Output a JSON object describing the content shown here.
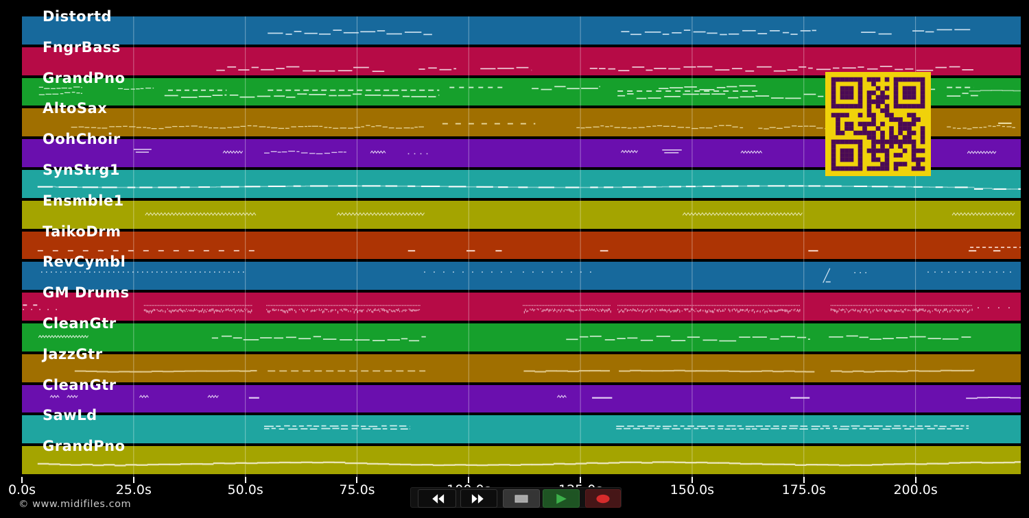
{
  "watermark": {
    "text": "© www.midifiles.com",
    "color": "#c9c9c9"
  },
  "axis": {
    "unit": "seconds",
    "duration_s": 223.6,
    "tick_color": "#ffffff",
    "gridline_color": "rgba(255,255,255,0.38)",
    "ticks": [
      {
        "t": 0,
        "label": "0.0s"
      },
      {
        "t": 25,
        "label": "25.0s"
      },
      {
        "t": 50,
        "label": "50.0s"
      },
      {
        "t": 75,
        "label": "75.0s"
      },
      {
        "t": 100,
        "label": "100.0s"
      },
      {
        "t": 125,
        "label": "125.0s"
      },
      {
        "t": 150,
        "label": "150.0s"
      },
      {
        "t": 175,
        "label": "175.0s"
      },
      {
        "t": 200,
        "label": "200.0s"
      }
    ]
  },
  "transport": {
    "bar_bg": "#111111",
    "buttons": [
      {
        "id": "rewind",
        "icon": "rewind-icon",
        "bg": "#0d0d0d",
        "fg": "#ffffff",
        "border": "#333333"
      },
      {
        "id": "fast-forward",
        "icon": "fast-forward-icon",
        "bg": "#0d0d0d",
        "fg": "#ffffff",
        "border": "#333333"
      },
      {
        "id": "stop",
        "icon": "stop-icon",
        "bg": "#353535",
        "fg": "#a8a8a8",
        "border": "#4a4a4a"
      },
      {
        "id": "play",
        "icon": "play-icon",
        "bg": "#1e5423",
        "fg": "#3cb04a",
        "border": "#2a6a30"
      },
      {
        "id": "record",
        "icon": "record-icon",
        "bg": "#461617",
        "fg": "#d62b2b",
        "border": "#5a1d1e"
      }
    ]
  },
  "qr_code": {
    "light": "#f0d20a",
    "dark": "#4a0a55"
  },
  "tracks": [
    {
      "name": "Distortd",
      "color": "#17699c",
      "note_color": "#d9e9f5",
      "segments": [
        {
          "t0": 55.0,
          "t1": 91.8,
          "y": 0.55,
          "style": "steps"
        },
        {
          "t0": 134.1,
          "t1": 177.8,
          "y": 0.55,
          "style": "steps"
        },
        {
          "t0": 187.8,
          "t1": 194.7,
          "y": 0.52,
          "style": "steps"
        },
        {
          "t0": 199.3,
          "t1": 212.4,
          "y": 0.52,
          "style": "steps"
        }
      ]
    },
    {
      "name": "FngrBass",
      "color": "#b60b46",
      "note_color": "#f5dfe6",
      "segments": [
        {
          "t0": 43.5,
          "t1": 81.1,
          "y": 0.76,
          "style": "steps"
        },
        {
          "t0": 88.8,
          "t1": 97.2,
          "y": 0.74,
          "style": "steps"
        },
        {
          "t0": 102.6,
          "t1": 114.1,
          "y": 0.74,
          "style": "steps"
        },
        {
          "t0": 127.1,
          "t1": 177.0,
          "y": 0.76,
          "style": "steps"
        },
        {
          "t0": 177.8,
          "t1": 213.1,
          "y": 0.74,
          "style": "steps"
        }
      ]
    },
    {
      "name": "GrandPno",
      "color": "#16a02c",
      "note_color": "#e2f5e2",
      "segments": [
        {
          "t0": 3.8,
          "t1": 13.5,
          "y": 0.34,
          "style": "wavy"
        },
        {
          "t0": 3.8,
          "t1": 13.5,
          "y": 0.55,
          "style": "wavy"
        },
        {
          "t0": 21.5,
          "t1": 29.5,
          "y": 0.36,
          "style": "wavy"
        },
        {
          "t0": 32.7,
          "t1": 45.8,
          "y": 0.42,
          "style": "dashes",
          "d": 7,
          "g": 5
        },
        {
          "t0": 31.9,
          "t1": 45.8,
          "y": 0.6,
          "style": "steps"
        },
        {
          "t0": 55.0,
          "t1": 93.4,
          "y": 0.42,
          "style": "dashes",
          "d": 8,
          "g": 5
        },
        {
          "t0": 46.5,
          "t1": 93.4,
          "y": 0.63,
          "style": "steps"
        },
        {
          "t0": 95.7,
          "t1": 108.0,
          "y": 0.32,
          "style": "dashes",
          "d": 7,
          "g": 7
        },
        {
          "t0": 114.1,
          "t1": 129.4,
          "y": 0.32,
          "style": "steps"
        },
        {
          "t0": 133.3,
          "t1": 164.8,
          "y": 0.45,
          "style": "dashes",
          "d": 8,
          "g": 6
        },
        {
          "t0": 133.3,
          "t1": 179.4,
          "y": 0.63,
          "style": "steps"
        },
        {
          "t0": 142.5,
          "t1": 164.8,
          "y": 0.32,
          "style": "steps"
        },
        {
          "t0": 184.7,
          "t1": 204.7,
          "y": 0.32,
          "style": "steps"
        },
        {
          "t0": 207.0,
          "t1": 213.0,
          "y": 0.32,
          "style": "dashes",
          "d": 8,
          "g": 5
        },
        {
          "t0": 212.0,
          "t1": 223.6,
          "y": 0.45,
          "style": "line",
          "h": 1.6,
          "o": 0.6
        },
        {
          "t0": 207.0,
          "t1": 214.0,
          "y": 0.6,
          "style": "steps"
        }
      ]
    },
    {
      "name": "AltoSax",
      "color": "#a06f00",
      "note_color": "#eedfa8",
      "segments": [
        {
          "t0": 11.0,
          "t1": 90.3,
          "y": 0.65,
          "style": "wavy"
        },
        {
          "t0": 94.1,
          "t1": 114.9,
          "y": 0.52,
          "style": "dashes",
          "d": 8,
          "g": 11
        },
        {
          "t0": 124.1,
          "t1": 161.7,
          "y": 0.65,
          "style": "wavy"
        },
        {
          "t0": 164.8,
          "t1": 201.6,
          "y": 0.65,
          "style": "wavy"
        },
        {
          "t0": 207.0,
          "t1": 222.4,
          "y": 0.65,
          "style": "wavy"
        },
        {
          "t0": 218.5,
          "t1": 221.5,
          "y": 0.5,
          "style": "dash1"
        }
      ]
    },
    {
      "name": "OohChoir",
      "color": "#6a0fae",
      "note_color": "#e9ddf6",
      "segments": [
        {
          "t0": 25.0,
          "t1": 29.2,
          "y": 0.42,
          "style": "eq"
        },
        {
          "t0": 45.0,
          "t1": 49.6,
          "y": 0.46,
          "style": "squiggle"
        },
        {
          "t0": 54.2,
          "t1": 72.6,
          "y": 0.46,
          "style": "wavy"
        },
        {
          "t0": 78.0,
          "t1": 81.4,
          "y": 0.46,
          "style": "squiggle"
        },
        {
          "t0": 86.4,
          "t1": 91.8,
          "y": 0.5,
          "style": "dots",
          "sp": 9
        },
        {
          "t0": 134.1,
          "t1": 137.9,
          "y": 0.44,
          "style": "squiggle"
        },
        {
          "t0": 143.3,
          "t1": 147.9,
          "y": 0.44,
          "style": "eq"
        },
        {
          "t0": 160.9,
          "t1": 165.8,
          "y": 0.46,
          "style": "squiggle"
        },
        {
          "t0": 211.6,
          "t1": 218.1,
          "y": 0.47,
          "style": "squiggle"
        }
      ]
    },
    {
      "name": "SynStrg1",
      "color": "#1fa5a0",
      "note_color": "#eaf7f7",
      "segments": [
        {
          "t0": 3.5,
          "t1": 213.1,
          "y": 0.58,
          "style": "syn"
        },
        {
          "t0": 213.1,
          "t1": 223.6,
          "y": 0.64,
          "style": "syn"
        }
      ]
    },
    {
      "name": "Ensmble1",
      "color": "#a4a400",
      "note_color": "#f2f2cd",
      "segments": [
        {
          "t0": 27.6,
          "t1": 52.5,
          "y": 0.48,
          "style": "zigzag"
        },
        {
          "t0": 70.5,
          "t1": 90.4,
          "y": 0.48,
          "style": "zigzag"
        },
        {
          "t0": 147.9,
          "t1": 175.0,
          "y": 0.48,
          "style": "zigzag"
        },
        {
          "t0": 208.2,
          "t1": 222.4,
          "y": 0.48,
          "style": "zigzag"
        }
      ]
    },
    {
      "name": "TaikoDrm",
      "color": "#ad3404",
      "note_color": "#f6d3c4",
      "segments": [
        {
          "t0": 3.5,
          "t1": 52.2,
          "y": 0.67,
          "style": "dashes",
          "d": 8,
          "g": 14
        },
        {
          "t0": 86.4,
          "t1": 88.0,
          "y": 0.67,
          "style": "dash1"
        },
        {
          "t0": 99.5,
          "t1": 101.4,
          "y": 0.67,
          "style": "dash1"
        },
        {
          "t0": 106.0,
          "t1": 107.4,
          "y": 0.67,
          "style": "dash1"
        },
        {
          "t0": 129.4,
          "t1": 131.2,
          "y": 0.67,
          "style": "dash1"
        },
        {
          "t0": 176.0,
          "t1": 178.2,
          "y": 0.67,
          "style": "dash1"
        },
        {
          "t0": 212.2,
          "t1": 223.6,
          "y": 0.55,
          "style": "dashes",
          "d": 5,
          "g": 4
        },
        {
          "t0": 211.9,
          "t1": 213.6,
          "y": 0.67,
          "style": "dash1"
        },
        {
          "t0": 217.4,
          "t1": 219.0,
          "y": 0.67,
          "style": "dash1"
        }
      ]
    },
    {
      "name": "RevCymbl",
      "color": "#17699c",
      "note_color": "#d9e9f5",
      "segments": [
        {
          "t0": 4.3,
          "t1": 50.4,
          "y": 0.34,
          "style": "dots",
          "sp": 7
        },
        {
          "t0": 90.0,
          "t1": 111.2,
          "y": 0.34,
          "style": "dots",
          "sp": 14
        },
        {
          "t0": 112.1,
          "t1": 128.7,
          "y": 0.34,
          "style": "dots",
          "sp": 14
        },
        {
          "t0": 179.3,
          "t1": 180.8,
          "y": 0.52,
          "style": "slash"
        },
        {
          "t0": 186.3,
          "t1": 188.9,
          "y": 0.36,
          "style": "dots",
          "sp": 8
        },
        {
          "t0": 202.7,
          "t1": 222.4,
          "y": 0.34,
          "style": "dots",
          "sp": 10
        }
      ]
    },
    {
      "name": "GM Drums",
      "color": "#b60b46",
      "note_color": "#fadfe7",
      "segments": [
        {
          "t0": 0.2,
          "t1": 4.5,
          "y": 0.42,
          "style": "dashes",
          "d": 6,
          "g": 9
        },
        {
          "t0": 0.2,
          "t1": 8.0,
          "y": 0.58,
          "style": "dots",
          "sp": 12
        },
        {
          "t0": 27.3,
          "t1": 51.4,
          "y": 0.44,
          "style": "dotline"
        },
        {
          "t0": 27.3,
          "t1": 51.4,
          "y": 0.58,
          "style": "fuzzy"
        },
        {
          "t0": 54.7,
          "t1": 89.1,
          "y": 0.44,
          "style": "dotline"
        },
        {
          "t0": 54.7,
          "t1": 89.1,
          "y": 0.58,
          "style": "fuzzy"
        },
        {
          "t0": 112.1,
          "t1": 131.8,
          "y": 0.44,
          "style": "dotline"
        },
        {
          "t0": 112.1,
          "t1": 131.8,
          "y": 0.58,
          "style": "fuzzy"
        },
        {
          "t0": 133.3,
          "t1": 174.2,
          "y": 0.44,
          "style": "dotline"
        },
        {
          "t0": 133.3,
          "t1": 174.2,
          "y": 0.58,
          "style": "fuzzy"
        },
        {
          "t0": 181.0,
          "t1": 212.7,
          "y": 0.44,
          "style": "dotline"
        },
        {
          "t0": 181.0,
          "t1": 212.7,
          "y": 0.58,
          "style": "fuzzy"
        },
        {
          "t0": 213.9,
          "t1": 223.1,
          "y": 0.52,
          "style": "dots",
          "sp": 15
        }
      ]
    },
    {
      "name": "CleanGtr",
      "color": "#16a02c",
      "note_color": "#def2de",
      "segments": [
        {
          "t0": 3.7,
          "t1": 15.0,
          "y": 0.47,
          "style": "squiggle"
        },
        {
          "t0": 42.5,
          "t1": 90.4,
          "y": 0.52,
          "style": "steps"
        },
        {
          "t0": 121.8,
          "t1": 176.4,
          "y": 0.52,
          "style": "steps"
        },
        {
          "t0": 180.6,
          "t1": 212.4,
          "y": 0.5,
          "style": "steps"
        }
      ]
    },
    {
      "name": "JazzGtr",
      "color": "#a06f00",
      "note_color": "#e3cc90",
      "segments": [
        {
          "t0": 11.8,
          "t1": 52.5,
          "y": 0.58,
          "style": "line",
          "h": 2.2
        },
        {
          "t0": 55.0,
          "t1": 90.3,
          "y": 0.58,
          "style": "dashes",
          "d": 11,
          "g": 6
        },
        {
          "t0": 112.3,
          "t1": 131.5,
          "y": 0.58,
          "style": "line",
          "h": 2.2
        },
        {
          "t0": 133.6,
          "t1": 177.3,
          "y": 0.58,
          "style": "line",
          "h": 2.2
        },
        {
          "t0": 181.0,
          "t1": 213.1,
          "y": 0.58,
          "style": "line",
          "h": 2.2
        }
      ]
    },
    {
      "name": "CleanGtr",
      "color": "#6a0fae",
      "note_color": "#ead9f7",
      "segments": [
        {
          "t0": 6.3,
          "t1": 8.6,
          "y": 0.42,
          "style": "squiggle"
        },
        {
          "t0": 10.1,
          "t1": 12.7,
          "y": 0.42,
          "style": "squiggle"
        },
        {
          "t0": 26.3,
          "t1": 28.6,
          "y": 0.42,
          "style": "squiggle"
        },
        {
          "t0": 41.6,
          "t1": 44.2,
          "y": 0.42,
          "style": "squiggle"
        },
        {
          "t0": 50.8,
          "t1": 53.1,
          "y": 0.44,
          "style": "dash1"
        },
        {
          "t0": 119.8,
          "t1": 121.9,
          "y": 0.42,
          "style": "squiggle"
        },
        {
          "t0": 127.6,
          "t1": 132.1,
          "y": 0.44,
          "style": "dash1"
        },
        {
          "t0": 172.0,
          "t1": 176.3,
          "y": 0.44,
          "style": "dash1"
        },
        {
          "t0": 211.3,
          "t1": 223.6,
          "y": 0.46,
          "style": "line",
          "h": 1.8
        }
      ]
    },
    {
      "name": "SawLd",
      "color": "#1fa5a0",
      "note_color": "#e8f8f8",
      "segments": [
        {
          "t0": 54.2,
          "t1": 86.9,
          "y": 0.36,
          "style": "double"
        },
        {
          "t0": 133.0,
          "t1": 211.9,
          "y": 0.36,
          "style": "double"
        }
      ]
    },
    {
      "name": "GrandPno",
      "color": "#a4a400",
      "note_color": "#efe9c4",
      "segments": [
        {
          "t0": 3.5,
          "t1": 223.6,
          "y": 0.6,
          "style": "line",
          "h": 2.4,
          "wave": 2
        }
      ]
    }
  ]
}
